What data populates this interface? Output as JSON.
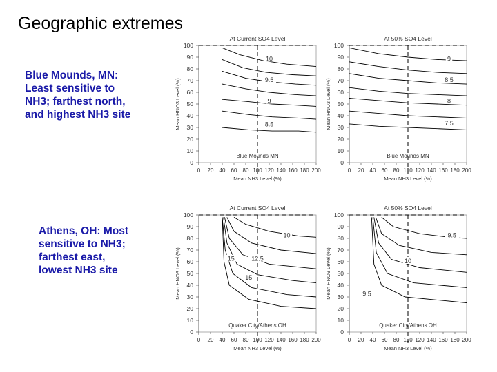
{
  "title": "Geographic extremes",
  "notes": {
    "blue_mounds": "Blue Mounds, MN:\nLeast sensitive to\nNH3; farthest north,\nand highest NH3 site",
    "athens": "Athens, OH:   Most\nsensitive to NH3;\nfarthest east,\nlowest NH3 site"
  },
  "chart_data": [
    {
      "type": "contour",
      "title": "At Current SO4 Level",
      "xlabel": "Mean NH3 Level (%)",
      "ylabel": "Mean HNO3 Level (%)",
      "xlim": [
        0,
        200
      ],
      "ylim": [
        0,
        100
      ],
      "xticks": [
        0,
        20,
        40,
        60,
        80,
        100,
        120,
        140,
        160,
        180,
        200
      ],
      "yticks": [
        0,
        10,
        20,
        30,
        40,
        50,
        60,
        70,
        80,
        90,
        100
      ],
      "site_label": "Blue Mounds MN",
      "reference_lines": {
        "x": 100,
        "y": 100
      },
      "contour_labels": [
        {
          "text": "10",
          "x": 120,
          "y": 88
        },
        {
          "text": "9.5",
          "x": 120,
          "y": 70
        },
        {
          "text": "9",
          "x": 120,
          "y": 52
        },
        {
          "text": "8.5",
          "x": 120,
          "y": 32
        }
      ],
      "contours": [
        [
          [
            40,
            98
          ],
          [
            70,
            92
          ],
          [
            110,
            87
          ],
          [
            150,
            84
          ],
          [
            200,
            82
          ]
        ],
        [
          [
            40,
            88
          ],
          [
            75,
            81
          ],
          [
            115,
            77
          ],
          [
            160,
            75
          ],
          [
            200,
            74
          ]
        ],
        [
          [
            40,
            78
          ],
          [
            80,
            72
          ],
          [
            120,
            69
          ],
          [
            165,
            67
          ],
          [
            200,
            66
          ]
        ],
        [
          [
            40,
            67
          ],
          [
            80,
            63
          ],
          [
            120,
            60
          ],
          [
            165,
            58
          ],
          [
            200,
            57
          ]
        ],
        [
          [
            40,
            54
          ],
          [
            85,
            52
          ],
          [
            125,
            50
          ],
          [
            165,
            49
          ],
          [
            200,
            48
          ]
        ],
        [
          [
            40,
            44
          ],
          [
            85,
            41
          ],
          [
            125,
            39
          ],
          [
            170,
            38
          ],
          [
            200,
            37
          ]
        ],
        [
          [
            40,
            30
          ],
          [
            85,
            28
          ],
          [
            125,
            27
          ],
          [
            170,
            27
          ],
          [
            200,
            26
          ]
        ]
      ]
    },
    {
      "type": "contour",
      "title": "At 50% SO4 Level",
      "xlabel": "Mean NH3 Level (%)",
      "ylabel": "Mean HNO3 Level (%)",
      "xlim": [
        0,
        200
      ],
      "ylim": [
        0,
        100
      ],
      "xticks": [
        0,
        20,
        40,
        60,
        80,
        100,
        120,
        140,
        160,
        180,
        200
      ],
      "yticks": [
        0,
        10,
        20,
        30,
        40,
        50,
        60,
        70,
        80,
        90,
        100
      ],
      "site_label": "Blue Mounds MN",
      "reference_lines": {
        "x": 100,
        "y": 100
      },
      "contour_labels": [
        {
          "text": "9",
          "x": 170,
          "y": 88
        },
        {
          "text": "8.5",
          "x": 170,
          "y": 70
        },
        {
          "text": "8",
          "x": 170,
          "y": 52
        },
        {
          "text": "7.5",
          "x": 170,
          "y": 33
        }
      ],
      "contours": [
        [
          [
            0,
            98
          ],
          [
            50,
            93
          ],
          [
            100,
            90
          ],
          [
            150,
            88
          ],
          [
            200,
            87
          ]
        ],
        [
          [
            0,
            86
          ],
          [
            50,
            82
          ],
          [
            100,
            79
          ],
          [
            150,
            77
          ],
          [
            200,
            76
          ]
        ],
        [
          [
            0,
            76
          ],
          [
            50,
            72
          ],
          [
            100,
            70
          ],
          [
            150,
            68
          ],
          [
            200,
            67
          ]
        ],
        [
          [
            0,
            64
          ],
          [
            50,
            61
          ],
          [
            100,
            59
          ],
          [
            150,
            58
          ],
          [
            200,
            57
          ]
        ],
        [
          [
            0,
            55
          ],
          [
            50,
            53
          ],
          [
            100,
            51
          ],
          [
            150,
            50
          ],
          [
            200,
            49
          ]
        ],
        [
          [
            0,
            44
          ],
          [
            50,
            42
          ],
          [
            100,
            40
          ],
          [
            150,
            39
          ],
          [
            200,
            38
          ]
        ],
        [
          [
            0,
            33
          ],
          [
            50,
            31
          ],
          [
            100,
            30
          ],
          [
            150,
            29
          ],
          [
            200,
            28
          ]
        ]
      ]
    },
    {
      "type": "contour",
      "title": "At Current SO4 Level",
      "xlabel": "Mean NH3 Level (%)",
      "ylabel": "Mean HNO3 Level (%)",
      "xlim": [
        0,
        200
      ],
      "ylim": [
        0,
        100
      ],
      "xticks": [
        0,
        20,
        40,
        60,
        80,
        100,
        120,
        140,
        160,
        180,
        200
      ],
      "yticks": [
        0,
        10,
        20,
        30,
        40,
        50,
        60,
        70,
        80,
        90,
        100
      ],
      "site_label": "Quaker City/Athens OH",
      "reference_lines": {
        "x": 100,
        "y": 100
      },
      "contour_labels": [
        {
          "text": "10",
          "x": 150,
          "y": 82
        },
        {
          "text": "12.5",
          "x": 100,
          "y": 62
        },
        {
          "text": "15",
          "x": 55,
          "y": 62
        },
        {
          "text": "15",
          "x": 85,
          "y": 46
        }
      ],
      "contours": [
        [
          [
            60,
            98
          ],
          [
            80,
            92
          ],
          [
            120,
            86
          ],
          [
            170,
            82
          ],
          [
            200,
            81
          ]
        ],
        [
          [
            48,
            98
          ],
          [
            60,
            86
          ],
          [
            90,
            76
          ],
          [
            140,
            70
          ],
          [
            200,
            67
          ]
        ],
        [
          [
            44,
            98
          ],
          [
            52,
            80
          ],
          [
            75,
            66
          ],
          [
            120,
            58
          ],
          [
            200,
            54
          ]
        ],
        [
          [
            42,
            98
          ],
          [
            48,
            76
          ],
          [
            65,
            58
          ],
          [
            100,
            49
          ],
          [
            160,
            44
          ],
          [
            200,
            42
          ]
        ],
        [
          [
            40,
            98
          ],
          [
            45,
            70
          ],
          [
            58,
            50
          ],
          [
            90,
            38
          ],
          [
            150,
            32
          ],
          [
            200,
            30
          ]
        ],
        [
          [
            40,
            98
          ],
          [
            43,
            60
          ],
          [
            52,
            40
          ],
          [
            85,
            28
          ],
          [
            140,
            22
          ],
          [
            200,
            20
          ]
        ]
      ]
    },
    {
      "type": "contour",
      "title": "At 50% SO4 Level",
      "xlabel": "Mean NH3 Level (%)",
      "ylabel": "Mean HNO3 Level (%)",
      "xlim": [
        0,
        200
      ],
      "ylim": [
        0,
        100
      ],
      "xticks": [
        0,
        20,
        40,
        60,
        80,
        100,
        120,
        140,
        160,
        180,
        200
      ],
      "yticks": [
        0,
        10,
        20,
        30,
        40,
        50,
        60,
        70,
        80,
        90,
        100
      ],
      "site_label": "Quaker City/Athens OH",
      "reference_lines": {
        "x": 100,
        "y": 100
      },
      "contour_labels": [
        {
          "text": "9.5",
          "x": 175,
          "y": 82
        },
        {
          "text": "10",
          "x": 100,
          "y": 60
        },
        {
          "text": "9.5",
          "x": 30,
          "y": 32
        }
      ],
      "contours": [
        [
          [
            55,
            98
          ],
          [
            75,
            90
          ],
          [
            120,
            84
          ],
          [
            170,
            81
          ],
          [
            200,
            80
          ]
        ],
        [
          [
            45,
            98
          ],
          [
            55,
            84
          ],
          [
            85,
            74
          ],
          [
            140,
            68
          ],
          [
            200,
            66
          ]
        ],
        [
          [
            42,
            98
          ],
          [
            50,
            76
          ],
          [
            72,
            62
          ],
          [
            120,
            55
          ],
          [
            200,
            51
          ]
        ],
        [
          [
            40,
            98
          ],
          [
            46,
            68
          ],
          [
            65,
            50
          ],
          [
            110,
            42
          ],
          [
            200,
            38
          ]
        ],
        [
          [
            38,
            98
          ],
          [
            42,
            58
          ],
          [
            55,
            40
          ],
          [
            95,
            30
          ],
          [
            200,
            25
          ]
        ]
      ]
    }
  ]
}
